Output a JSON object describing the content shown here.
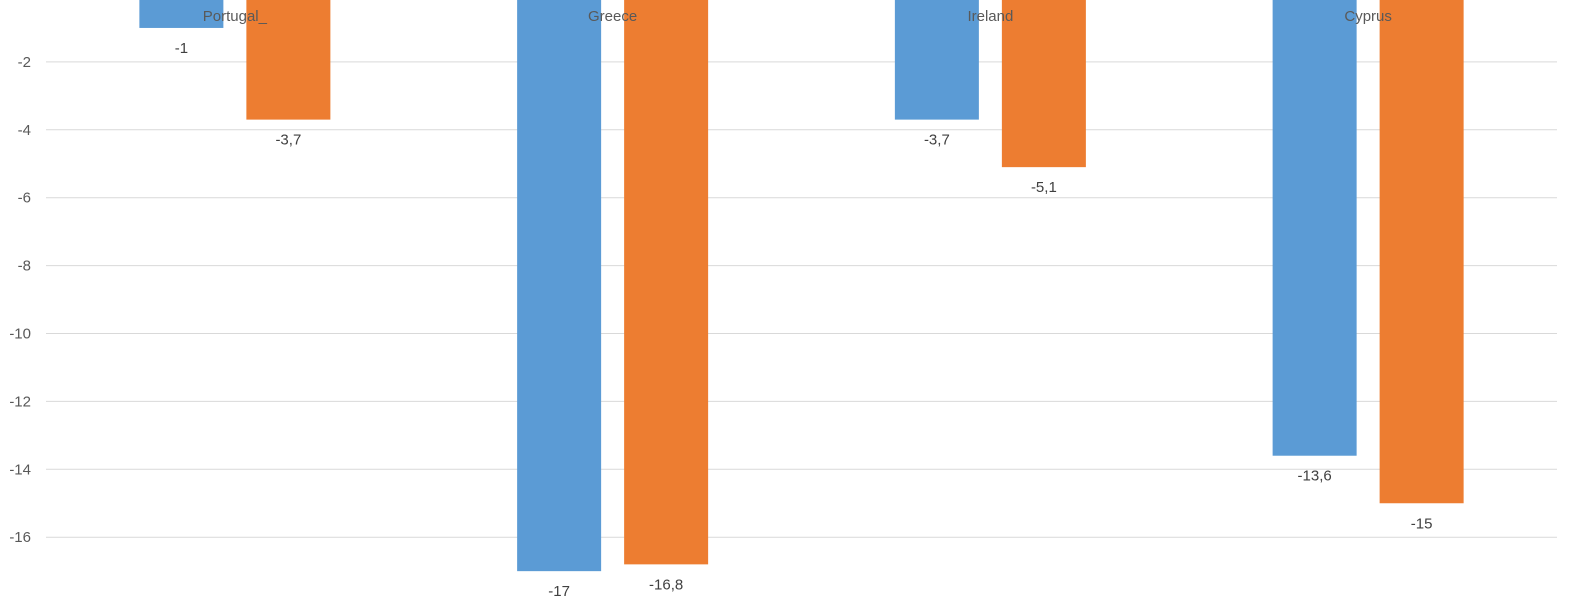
{
  "chart_data": {
    "type": "bar",
    "categories": [
      "Portugal_",
      "Greece",
      "Ireland",
      "Cyprus"
    ],
    "series": [
      {
        "color": "#5B9BD5",
        "values": [
          -1,
          -17,
          -3.7,
          -13.6
        ],
        "value_labels": [
          "-1",
          "-17",
          "-3,7",
          "-13,6"
        ]
      },
      {
        "color": "#ED7D31",
        "values": [
          -3.7,
          -16.8,
          -5.1,
          -15
        ],
        "value_labels": [
          "-3,7",
          "-16,8",
          "-5,1",
          "-15"
        ]
      }
    ],
    "y_ticks": [
      -2,
      -4,
      -6,
      -8,
      -10,
      -12,
      -14,
      -16
    ],
    "y_tick_labels": [
      "-2",
      "-4",
      "-6",
      "-8",
      "-10",
      "-12",
      "-14",
      "-16"
    ],
    "ylim": [
      -18,
      0
    ],
    "grid": true,
    "gridline_color": "#D9D9D9"
  }
}
